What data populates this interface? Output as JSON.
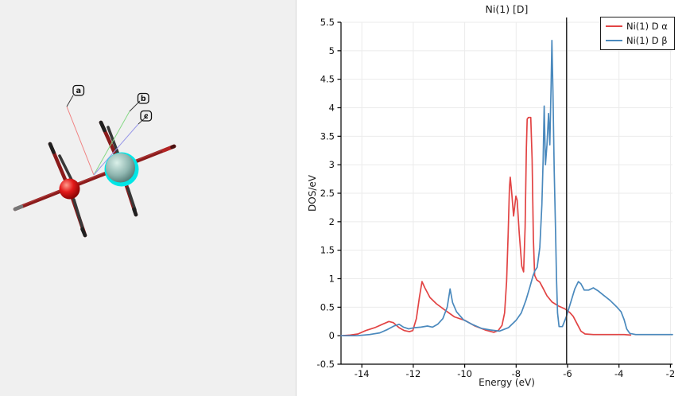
{
  "viewer": {
    "background": "#f0f0f0",
    "axis_labels": [
      "a",
      "b",
      "c"
    ],
    "axis_colors": {
      "a": "#f08080",
      "b": "#84d884",
      "c": "#9898e8"
    },
    "bond_color": "#8a1b1b",
    "atoms": [
      {
        "name": "red-atom",
        "color": "#d40f0f"
      },
      {
        "name": "selected-atom",
        "color": "#8fb6b0",
        "highlight_color": "#00e6e6"
      }
    ]
  },
  "chart_data": {
    "type": "line",
    "title": "Ni(1) [D]",
    "xlabel": "Energy (eV)",
    "ylabel": "DOS/eV",
    "xlim": [
      -14.81,
      -1.92
    ],
    "ylim": [
      -0.5,
      5.5
    ],
    "x_ticks": [
      -14,
      -12,
      -10,
      -8,
      -6,
      -4,
      -2
    ],
    "y_ticks": [
      -0.5,
      0,
      0.5,
      1,
      1.5,
      2,
      2.5,
      3,
      3.5,
      4,
      4.5,
      5,
      5.5
    ],
    "grid": true,
    "grid_color": "#ebebeb",
    "legend_position": "top-right",
    "fermi_line_x": -6.04,
    "fermi_line_color": "#2b2b2b",
    "series": [
      {
        "name": "Ni(1) D α",
        "color": "#e24444",
        "points": [
          [
            -14.81,
            0.0
          ],
          [
            -14.45,
            0.01
          ],
          [
            -14.15,
            0.03
          ],
          [
            -13.85,
            0.09
          ],
          [
            -13.5,
            0.14
          ],
          [
            -13.2,
            0.2
          ],
          [
            -12.95,
            0.25
          ],
          [
            -12.78,
            0.23
          ],
          [
            -12.55,
            0.14
          ],
          [
            -12.35,
            0.09
          ],
          [
            -12.15,
            0.07
          ],
          [
            -12.02,
            0.09
          ],
          [
            -11.88,
            0.3
          ],
          [
            -11.76,
            0.68
          ],
          [
            -11.66,
            0.95
          ],
          [
            -11.55,
            0.84
          ],
          [
            -11.35,
            0.67
          ],
          [
            -11.1,
            0.56
          ],
          [
            -10.8,
            0.46
          ],
          [
            -10.4,
            0.33
          ],
          [
            -10.0,
            0.27
          ],
          [
            -9.6,
            0.17
          ],
          [
            -9.2,
            0.1
          ],
          [
            -8.87,
            0.06
          ],
          [
            -8.7,
            0.09
          ],
          [
            -8.55,
            0.18
          ],
          [
            -8.45,
            0.4
          ],
          [
            -8.37,
            0.95
          ],
          [
            -8.31,
            1.8
          ],
          [
            -8.26,
            2.6
          ],
          [
            -8.23,
            2.78
          ],
          [
            -8.17,
            2.5
          ],
          [
            -8.1,
            2.1
          ],
          [
            -8.01,
            2.45
          ],
          [
            -7.96,
            2.38
          ],
          [
            -7.88,
            1.8
          ],
          [
            -7.78,
            1.22
          ],
          [
            -7.71,
            1.12
          ],
          [
            -7.65,
            1.9
          ],
          [
            -7.6,
            3.3
          ],
          [
            -7.57,
            3.8
          ],
          [
            -7.52,
            3.83
          ],
          [
            -7.43,
            3.83
          ],
          [
            -7.38,
            3.1
          ],
          [
            -7.33,
            1.7
          ],
          [
            -7.28,
            1.06
          ],
          [
            -7.2,
            0.98
          ],
          [
            -7.08,
            0.94
          ],
          [
            -6.95,
            0.83
          ],
          [
            -6.8,
            0.7
          ],
          [
            -6.6,
            0.59
          ],
          [
            -6.35,
            0.52
          ],
          [
            -6.1,
            0.47
          ],
          [
            -5.92,
            0.41
          ],
          [
            -5.78,
            0.34
          ],
          [
            -5.62,
            0.2
          ],
          [
            -5.48,
            0.08
          ],
          [
            -5.32,
            0.03
          ],
          [
            -5.0,
            0.02
          ],
          [
            -4.4,
            0.02
          ],
          [
            -3.8,
            0.02
          ],
          [
            -3.55,
            0.01
          ]
        ]
      },
      {
        "name": "Ni(1) D β",
        "color": "#4a89bd",
        "points": [
          [
            -14.81,
            0.0
          ],
          [
            -14.2,
            0.0
          ],
          [
            -13.7,
            0.02
          ],
          [
            -13.3,
            0.05
          ],
          [
            -13.0,
            0.11
          ],
          [
            -12.75,
            0.17
          ],
          [
            -12.55,
            0.2
          ],
          [
            -12.38,
            0.15
          ],
          [
            -12.18,
            0.12
          ],
          [
            -11.95,
            0.14
          ],
          [
            -11.7,
            0.15
          ],
          [
            -11.45,
            0.17
          ],
          [
            -11.25,
            0.15
          ],
          [
            -11.05,
            0.2
          ],
          [
            -10.85,
            0.3
          ],
          [
            -10.68,
            0.5
          ],
          [
            -10.57,
            0.82
          ],
          [
            -10.47,
            0.58
          ],
          [
            -10.32,
            0.42
          ],
          [
            -10.05,
            0.28
          ],
          [
            -9.72,
            0.2
          ],
          [
            -9.35,
            0.13
          ],
          [
            -9.0,
            0.1
          ],
          [
            -8.65,
            0.08
          ],
          [
            -8.3,
            0.14
          ],
          [
            -8.0,
            0.27
          ],
          [
            -7.8,
            0.4
          ],
          [
            -7.62,
            0.62
          ],
          [
            -7.47,
            0.85
          ],
          [
            -7.35,
            1.04
          ],
          [
            -7.27,
            1.14
          ],
          [
            -7.18,
            1.2
          ],
          [
            -7.08,
            1.55
          ],
          [
            -7.0,
            2.3
          ],
          [
            -6.95,
            3.1
          ],
          [
            -6.91,
            4.03
          ],
          [
            -6.86,
            3.0
          ],
          [
            -6.8,
            3.35
          ],
          [
            -6.74,
            3.9
          ],
          [
            -6.69,
            3.35
          ],
          [
            -6.64,
            4.4
          ],
          [
            -6.61,
            5.18
          ],
          [
            -6.57,
            4.3
          ],
          [
            -6.52,
            2.9
          ],
          [
            -6.47,
            1.9
          ],
          [
            -6.43,
            1.0
          ],
          [
            -6.39,
            0.4
          ],
          [
            -6.33,
            0.16
          ],
          [
            -6.2,
            0.16
          ],
          [
            -6.05,
            0.33
          ],
          [
            -5.9,
            0.55
          ],
          [
            -5.72,
            0.82
          ],
          [
            -5.58,
            0.95
          ],
          [
            -5.48,
            0.91
          ],
          [
            -5.35,
            0.8
          ],
          [
            -5.18,
            0.8
          ],
          [
            -5.0,
            0.84
          ],
          [
            -4.82,
            0.79
          ],
          [
            -4.6,
            0.71
          ],
          [
            -4.35,
            0.62
          ],
          [
            -4.1,
            0.51
          ],
          [
            -3.92,
            0.42
          ],
          [
            -3.8,
            0.28
          ],
          [
            -3.7,
            0.12
          ],
          [
            -3.58,
            0.04
          ],
          [
            -3.35,
            0.02
          ],
          [
            -2.6,
            0.02
          ],
          [
            -1.92,
            0.02
          ]
        ]
      }
    ]
  }
}
